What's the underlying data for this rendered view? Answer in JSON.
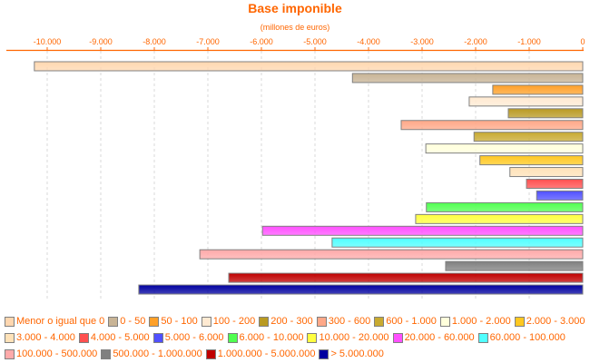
{
  "chart_data": {
    "type": "bar",
    "orientation": "horizontal",
    "title": "Base imponible",
    "subtitle": "(millones de euros)",
    "xlim": [
      -10300,
      0
    ],
    "xticks": [
      -10000,
      -9000,
      -8000,
      -7000,
      -6000,
      -5000,
      -4000,
      -3000,
      -2000,
      -1000,
      0
    ],
    "xtick_labels": [
      "-10.000",
      "-9.000",
      "-8.000",
      "-7.000",
      "-6.000",
      "-5.000",
      "-4.000",
      "-3.000",
      "-2.000",
      "-1.000",
      "0"
    ],
    "grid": true,
    "legend_position": "bottom",
    "categories": [
      "Menor o igual que 0",
      "0 - 50",
      "50 - 100",
      "100 - 200",
      "200 - 300",
      "300 - 600",
      "600 - 1.000",
      "1.000 - 2.000",
      "2.000 - 3.000",
      "3.000 - 4.000",
      "4.000 - 5.000",
      "5.000 - 6.000",
      "6.000 - 10.000",
      "10.000 - 20.000",
      "20.000 - 60.000",
      "60.000 - 100.000",
      "100.000 - 500.000",
      "500.000 - 1.000.000",
      "1.000.000 - 5.000.000",
      "> 5.000.000"
    ],
    "values": [
      -10240,
      -4300,
      -1680,
      -2120,
      -1390,
      -3390,
      -2030,
      -2930,
      -1920,
      -1360,
      -1050,
      -860,
      -2920,
      -3120,
      -5980,
      -4680,
      -7150,
      -2560,
      -6610,
      -8290
    ],
    "colors": [
      "#ffd7b0",
      "#c8b496",
      "#ffa028",
      "#ffead2",
      "#b99a22",
      "#ffa888",
      "#c8aa30",
      "#ffffdc",
      "#ffc820",
      "#ffe2b8",
      "#ff5050",
      "#5050ff",
      "#50ff50",
      "#ffff40",
      "#ff50ff",
      "#50ffff",
      "#ffaaaa",
      "#808080",
      "#c00000",
      "#0000a0"
    ],
    "text_color": "#ff6600"
  }
}
